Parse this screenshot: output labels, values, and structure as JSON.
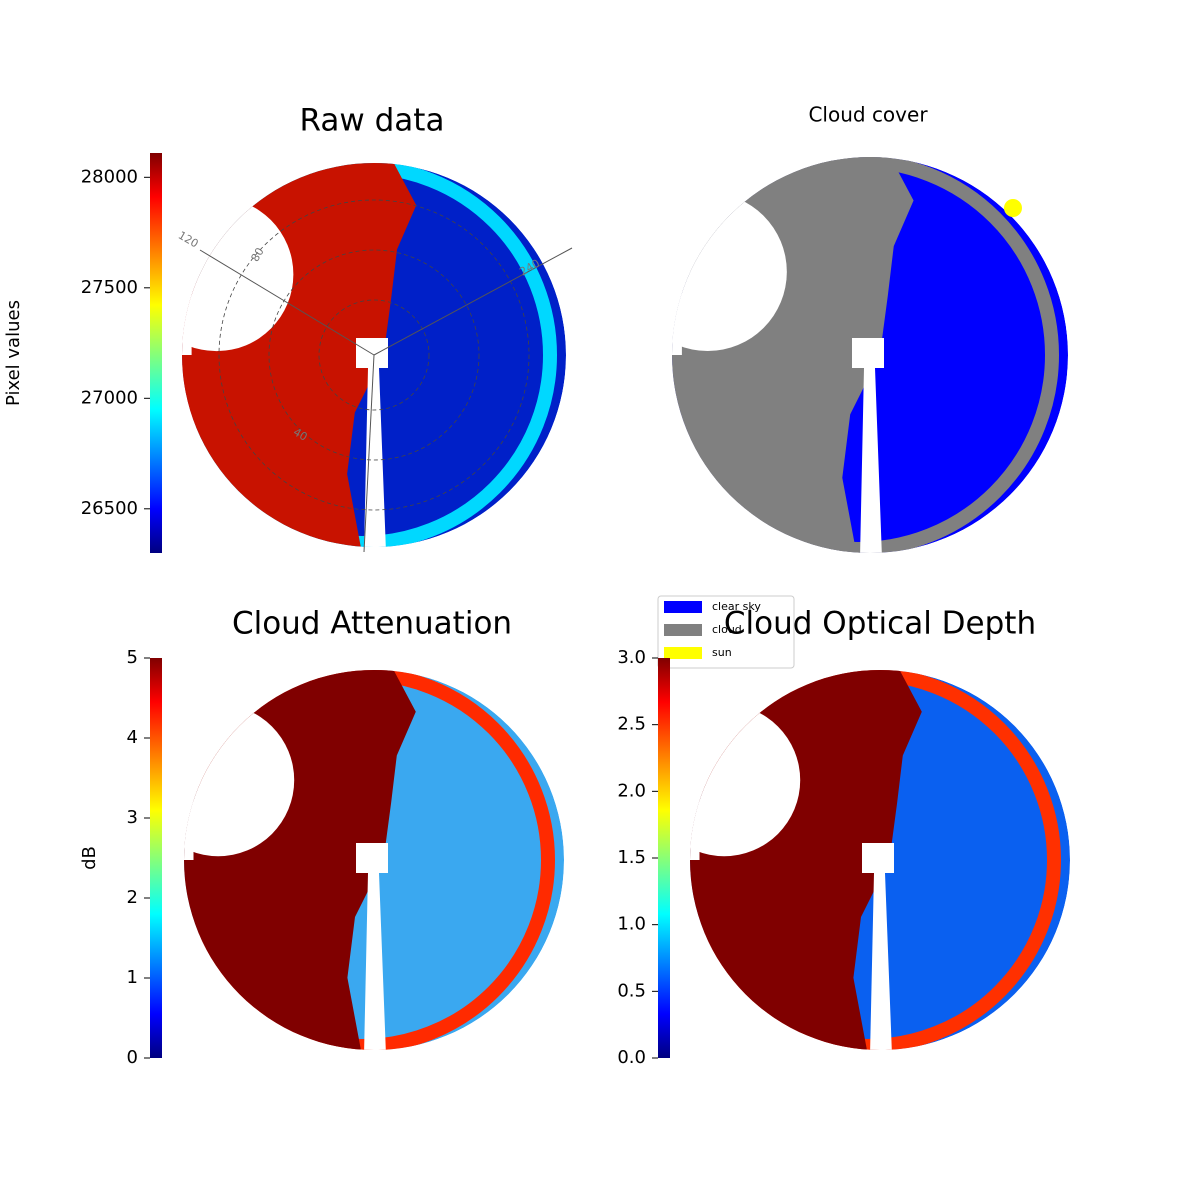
{
  "chart_data": [
    {
      "type": "image",
      "title": "Raw data",
      "colorbar_label": "Pixel values",
      "colormap": "jet",
      "ylim": [
        26300,
        28110
      ],
      "yticks": [
        26500,
        27000,
        27500,
        28000
      ],
      "annotations": [
        "120",
        "240",
        "80",
        "40"
      ]
    },
    {
      "type": "image",
      "title": "Cloud cover",
      "series": [
        {
          "name": "clear sky",
          "color": "#0000ff"
        },
        {
          "name": "cloud",
          "color": "#808080"
        },
        {
          "name": "sun",
          "color": "#ffff00"
        }
      ]
    },
    {
      "type": "image",
      "title": "Cloud Attenuation",
      "colorbar_label": "dB",
      "colormap": "jet",
      "ylim": [
        0,
        5
      ],
      "yticks": [
        0,
        1,
        2,
        3,
        4,
        5
      ]
    },
    {
      "type": "image",
      "title": "Cloud Optical Depth",
      "colormap": "jet",
      "ylim": [
        0,
        3
      ],
      "yticks": [
        {
          "value": 0,
          "label": "0.0"
        },
        {
          "value": 0.5,
          "label": "0.5"
        },
        {
          "value": 1,
          "label": "1.0"
        },
        {
          "value": 1.5,
          "label": "1.5"
        },
        {
          "value": 2,
          "label": "2.0"
        },
        {
          "value": 2.5,
          "label": "2.5"
        },
        {
          "value": 3,
          "label": "3.0"
        }
      ]
    }
  ]
}
